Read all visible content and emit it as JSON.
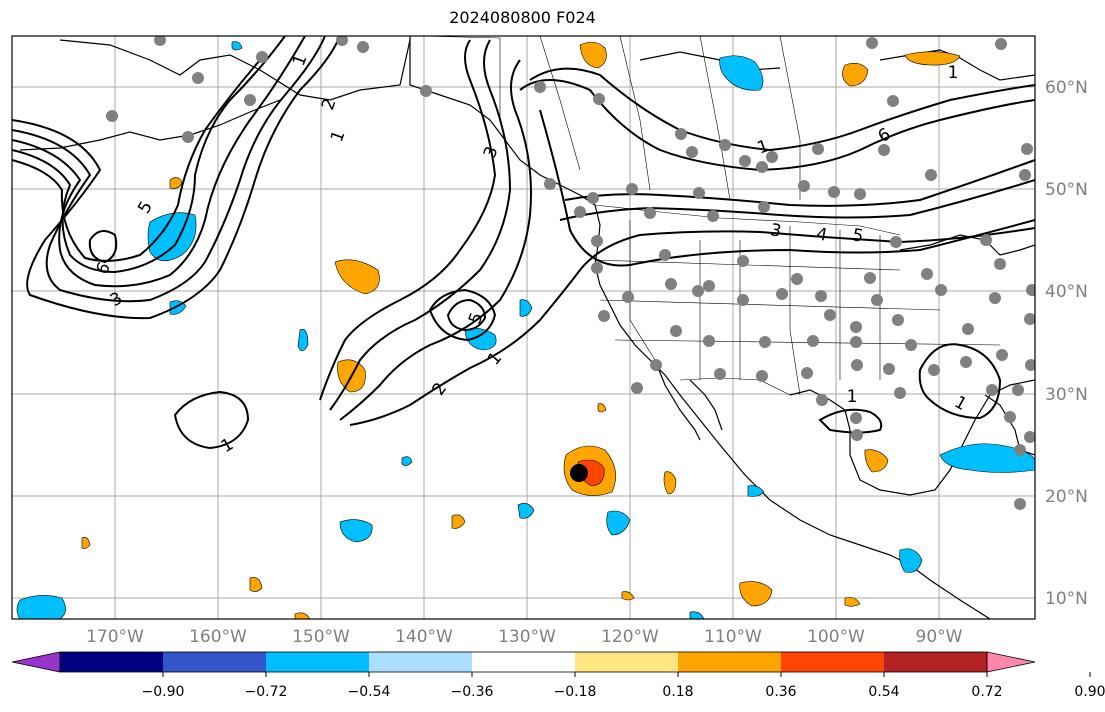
{
  "title": "2024080800 F024",
  "lat_ticks": [
    "60°N",
    "50°N",
    "40°N",
    "30°N",
    "20°N",
    "10°N"
  ],
  "lon_ticks": [
    "170°W",
    "160°W",
    "150°W",
    "140°W",
    "130°W",
    "120°W",
    "110°W",
    "100°W",
    "90°W"
  ],
  "colorbar": {
    "labels": [
      "−0.90",
      "−0.72",
      "−0.54",
      "−0.36",
      "−0.18",
      "0.18",
      "0.36",
      "0.54",
      "0.72",
      "0.90"
    ],
    "colors": [
      "#9933cc",
      "#000080",
      "#3355cc",
      "#00bfff",
      "#aadfff",
      "#ffffff",
      "#ffe680",
      "#ffa500",
      "#ff4500",
      "#b22222",
      "#ff88aa"
    ]
  },
  "contour_labels": [
    "6",
    "5",
    "3",
    "2",
    "1",
    "5",
    "3",
    "2",
    "1",
    "6",
    "5",
    "4",
    "3",
    "1",
    "1",
    "1",
    "1",
    "1",
    "1"
  ],
  "colors": {
    "grid": "#aaaaaa",
    "coast": "#000000",
    "station": "#808080",
    "contour": "#000000"
  }
}
